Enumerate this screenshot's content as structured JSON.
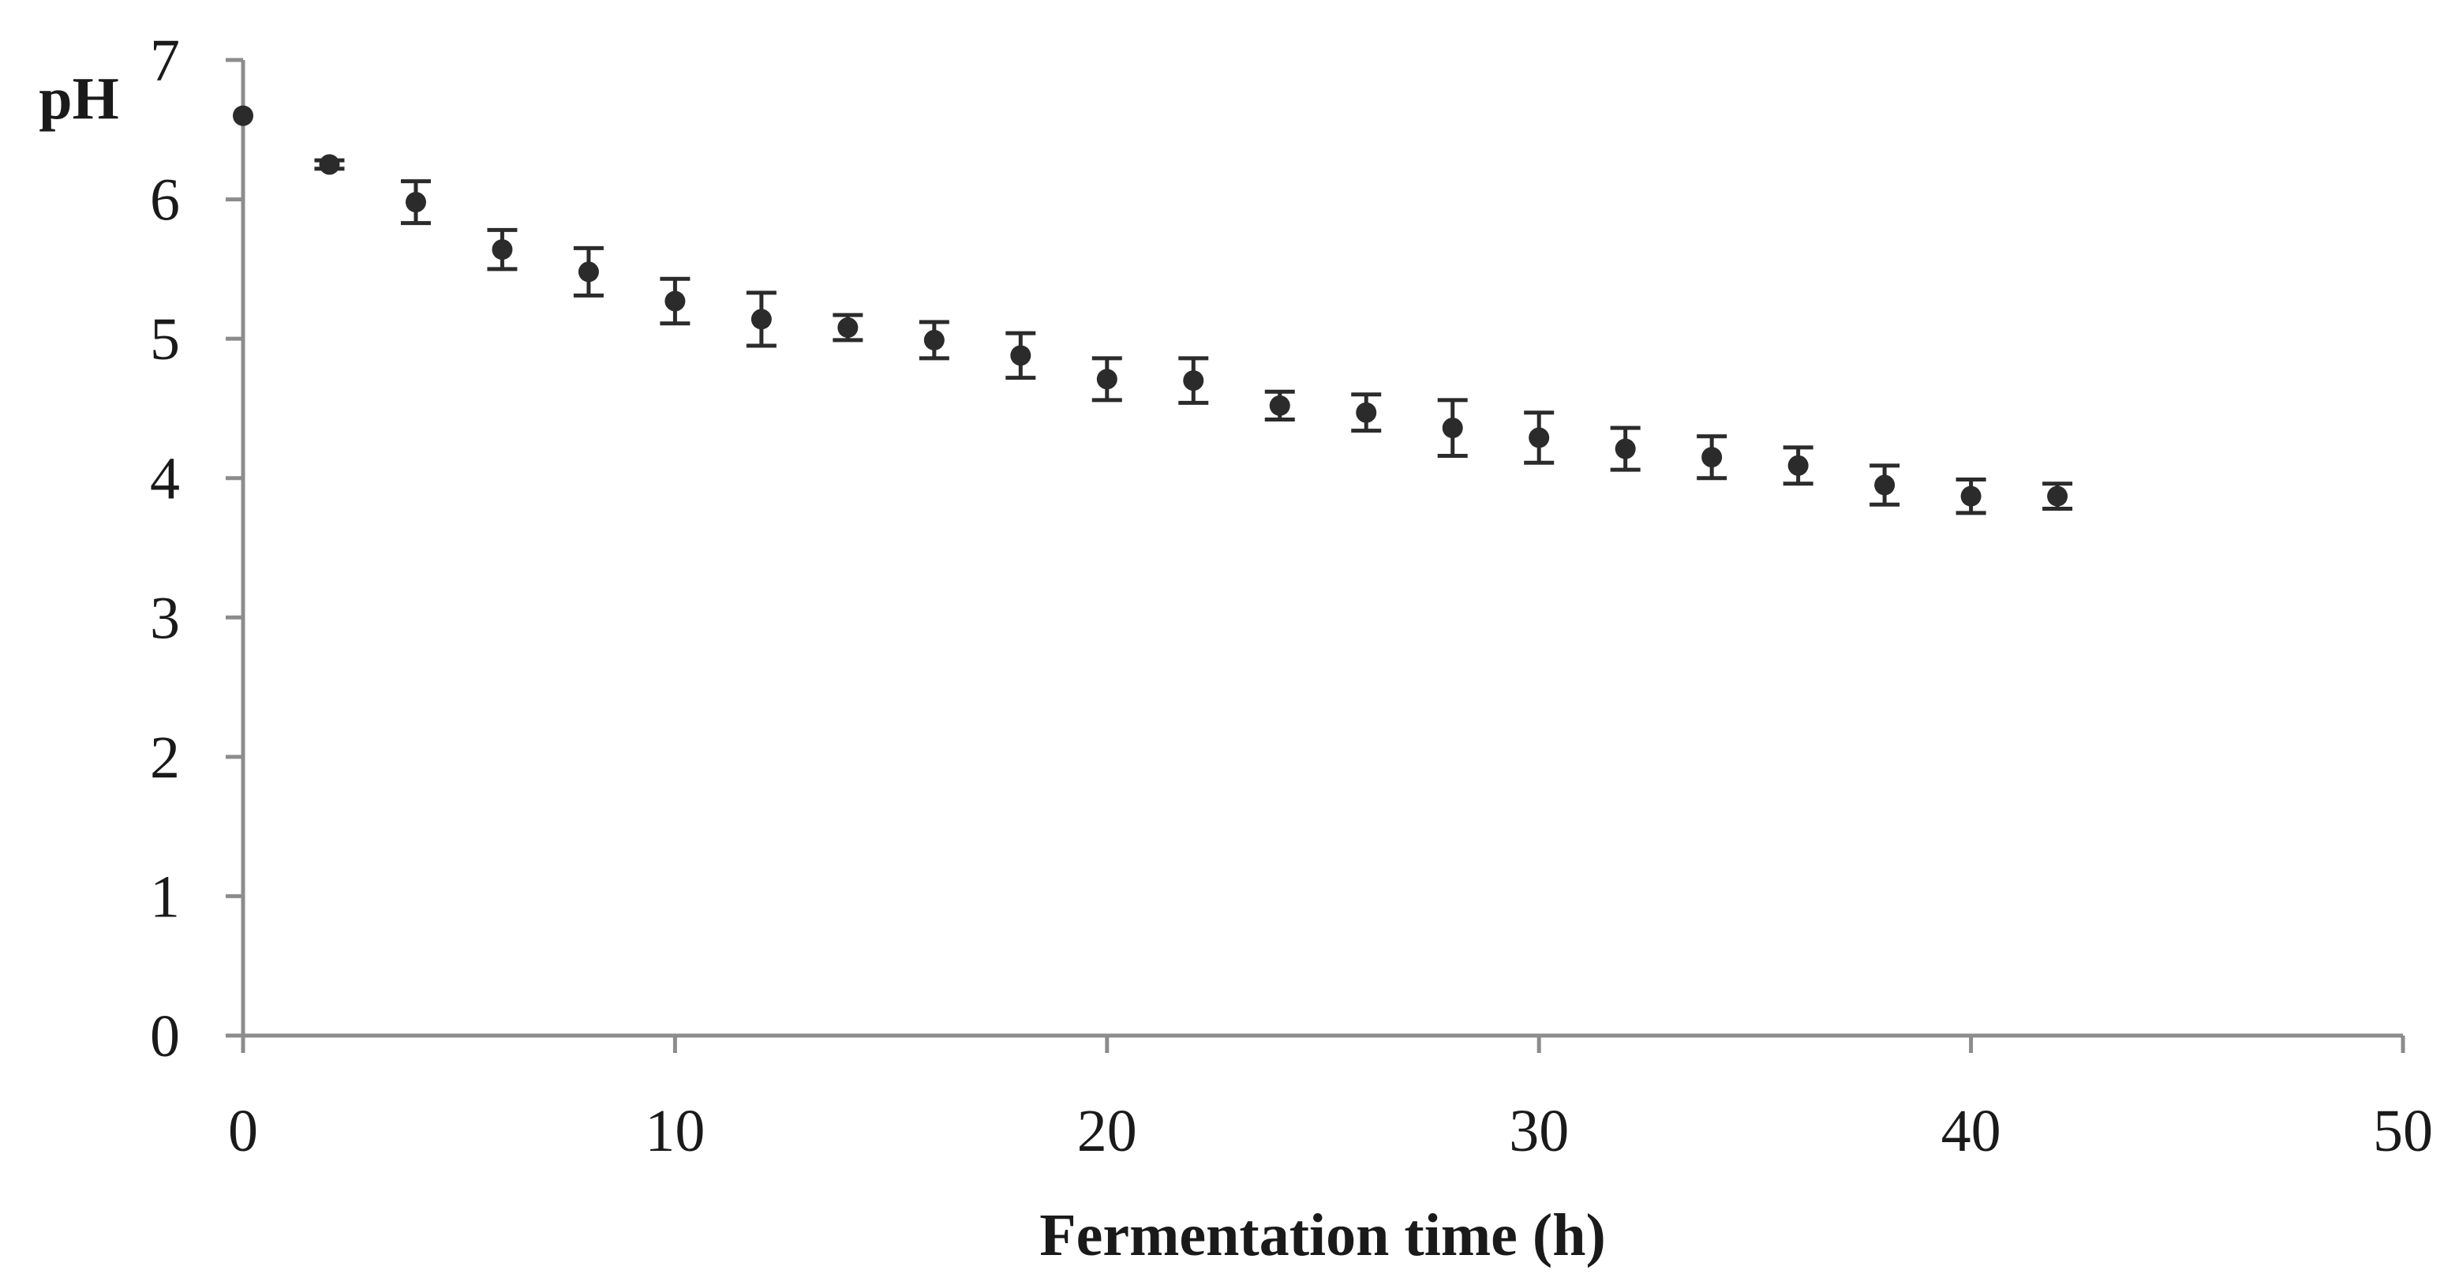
{
  "chart_data": {
    "type": "scatter",
    "title": "",
    "xlabel": "Fermentation time (h)",
    "ylabel": "pH",
    "xlim": [
      0,
      50
    ],
    "ylim": [
      0,
      7
    ],
    "x_ticks": [
      0,
      10,
      20,
      30,
      40,
      50
    ],
    "y_ticks": [
      0,
      1,
      2,
      3,
      4,
      5,
      6,
      7
    ],
    "grid": false,
    "legend": "none",
    "series": [
      {
        "name": "pH",
        "x": [
          0,
          2,
          4,
          6,
          8,
          10,
          12,
          14,
          16,
          18,
          20,
          22,
          24,
          26,
          28,
          30,
          32,
          34,
          36,
          38,
          40,
          42
        ],
        "y": [
          6.6,
          6.25,
          5.98,
          5.64,
          5.48,
          5.27,
          5.14,
          5.08,
          4.99,
          4.88,
          4.71,
          4.7,
          4.52,
          4.47,
          4.36,
          4.29,
          4.21,
          4.15,
          4.09,
          3.95,
          3.87,
          3.87
        ],
        "error": [
          0.0,
          0.03,
          0.15,
          0.14,
          0.17,
          0.16,
          0.19,
          0.09,
          0.13,
          0.16,
          0.15,
          0.16,
          0.1,
          0.13,
          0.2,
          0.18,
          0.15,
          0.15,
          0.13,
          0.14,
          0.12,
          0.09
        ]
      }
    ],
    "colors": {
      "marker": "#2b2b2b",
      "axis": "#8c8c8c",
      "text": "#1a1a1a"
    }
  }
}
